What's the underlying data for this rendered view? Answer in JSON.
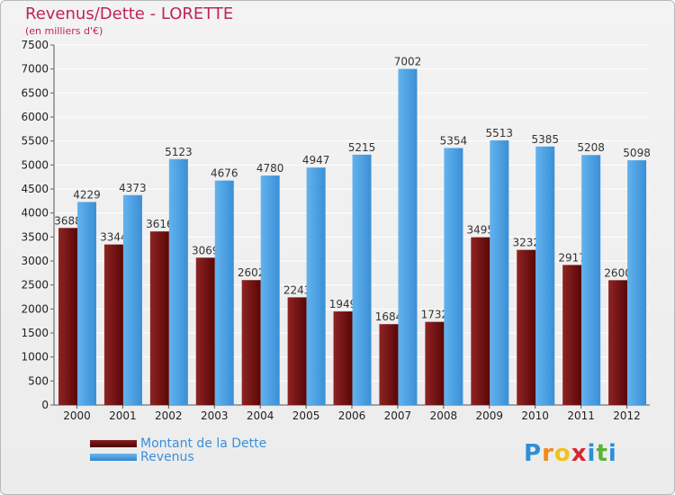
{
  "chart_data": {
    "type": "bar",
    "title": "Revenus/Dette - LORETTE",
    "subtitle": "(en milliers d'€)",
    "categories": [
      "2000",
      "2001",
      "2002",
      "2003",
      "2004",
      "2005",
      "2006",
      "2007",
      "2008",
      "2009",
      "2010",
      "2011",
      "2012"
    ],
    "series": [
      {
        "name": "Montant de la Dette",
        "color": "#6e0c0c",
        "values": [
          3688,
          3344,
          3616,
          3069,
          2602,
          2243,
          1949,
          1684,
          1732,
          3495,
          3232,
          2917,
          2600
        ]
      },
      {
        "name": "Revenus",
        "color": "#4da3e3",
        "values": [
          4229,
          4373,
          5123,
          4676,
          4780,
          4947,
          5215,
          7002,
          5354,
          5513,
          5385,
          5208,
          5098
        ]
      }
    ],
    "ylim": [
      0,
      7500
    ],
    "yticks": [
      0,
      500,
      1000,
      1500,
      2000,
      2500,
      3000,
      3500,
      4000,
      4500,
      5000,
      5500,
      6000,
      6500,
      7000,
      7500
    ],
    "grid": true,
    "legend": "bottom-left"
  },
  "logo": {
    "letters": [
      "P",
      "r",
      "o",
      "x",
      "i",
      "t",
      "i"
    ],
    "colors": [
      "#2e8fd8",
      "#f08a1c",
      "#f0c21c",
      "#d8262e",
      "#2e8fd8",
      "#5ab33c",
      "#2e8fd8"
    ]
  }
}
